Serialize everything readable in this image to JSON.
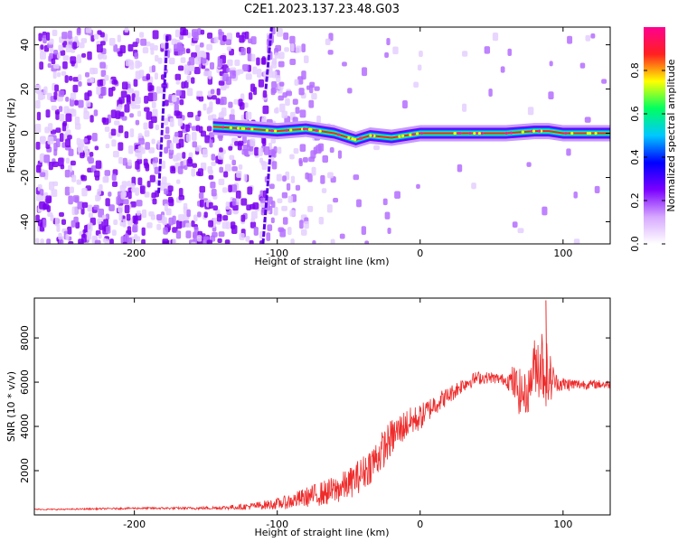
{
  "title": "C2E1.2023.137.23.48.G03",
  "chart_data": [
    {
      "type": "heatmap",
      "title": "",
      "xlabel": "Height of straight line (km)",
      "ylabel": "Frequency (Hz)",
      "xlim": [
        -270,
        133
      ],
      "ylim": [
        -50,
        48
      ],
      "xticks": [
        -200,
        -100,
        0,
        100
      ],
      "yticks": [
        -40,
        -20,
        0,
        20,
        40
      ],
      "colorbar": {
        "label": "Normalized spectral amplitude",
        "range": [
          0,
          1
        ],
        "ticks": [
          "0.0",
          "0.2",
          "0.4",
          "0.6",
          "0.8"
        ],
        "colors": [
          "#ffffff",
          "#d6a8ff",
          "#7b00ff",
          "#0000ff",
          "#00c8ff",
          "#00ff60",
          "#ffff00",
          "#ff2020",
          "#ff0090"
        ]
      },
      "ridge": {
        "x": [
          -145,
          -120,
          -100,
          -80,
          -60,
          -45,
          -35,
          -20,
          0,
          30,
          60,
          80,
          90,
          100,
          133
        ],
        "y": [
          3,
          2,
          1,
          2,
          0,
          -3,
          -1,
          -2,
          0,
          0,
          0,
          1,
          1,
          0,
          0
        ]
      },
      "streaks": [
        {
          "x": [
            -183,
            -177
          ],
          "y": [
            -27,
            44
          ]
        },
        {
          "x": [
            -110,
            -105
          ],
          "y": [
            -50,
            -10
          ]
        },
        {
          "x": [
            -108,
            -104
          ],
          "y": [
            20,
            48
          ]
        }
      ],
      "grid": false
    },
    {
      "type": "line",
      "title": "",
      "xlabel": "Height of straight line (km)",
      "ylabel": "SNR (10 * v/v)",
      "xlim": [
        -270,
        133
      ],
      "ylim": [
        0,
        9800
      ],
      "xticks": [
        -200,
        -100,
        0,
        100
      ],
      "yticks": [
        2000,
        4000,
        6000,
        8000
      ],
      "line_color": "#ef2b2b",
      "series": [
        {
          "x": [
            -270,
            -250,
            -220,
            -200,
            -180,
            -160,
            -140,
            -120,
            -100,
            -90,
            -80,
            -70,
            -60,
            -50,
            -40,
            -30,
            -20,
            -10,
            0,
            10,
            20,
            30,
            40,
            50,
            60,
            65,
            70,
            75,
            80,
            85,
            90,
            95,
            100,
            110,
            120,
            133
          ],
          "values": [
            250,
            250,
            280,
            300,
            300,
            300,
            320,
            380,
            500,
            620,
            800,
            950,
            1100,
            1400,
            1900,
            2600,
            3500,
            4100,
            4400,
            5000,
            5400,
            5900,
            6200,
            6200,
            6100,
            6000,
            5500,
            5400,
            6800,
            6900,
            6200,
            6000,
            5900,
            5900,
            5900,
            5900
          ],
          "noise": [
            30,
            30,
            40,
            40,
            50,
            60,
            80,
            150,
            250,
            350,
            450,
            550,
            650,
            700,
            800,
            900,
            850,
            700,
            600,
            500,
            400,
            350,
            300,
            250,
            250,
            800,
            1100,
            900,
            1200,
            1900,
            1400,
            400,
            350,
            250,
            200,
            200
          ]
        }
      ],
      "peaks": [
        {
          "x": 88,
          "y": 9700
        }
      ],
      "grid": false
    }
  ]
}
